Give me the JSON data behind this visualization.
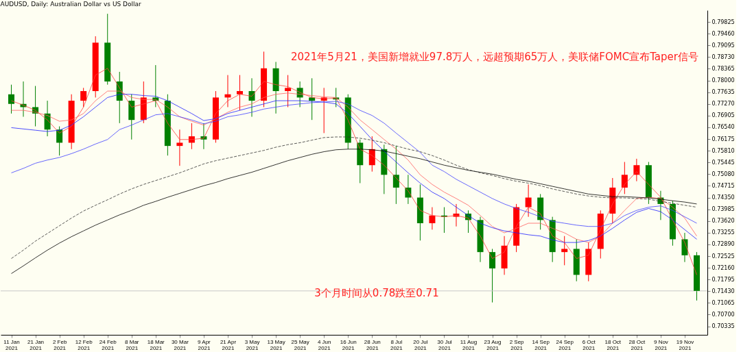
{
  "chart_data": {
    "type": "candlestick",
    "title": "AUDUSD, Daily: Australian Dollar vs US Dollar",
    "categories": [
      "11 Jan 2021",
      null,
      "21 Jan 2021",
      null,
      "2 Feb 2021",
      null,
      "12 Feb 2021",
      null,
      "24 Feb 2021",
      null,
      "8 Mar 2021",
      null,
      "18 Mar 2021",
      null,
      "30 Mar 2021",
      null,
      "9 Apr 2021",
      null,
      "21 Apr 2021",
      null,
      "3 May 2021",
      null,
      "13 May 2021",
      null,
      "25 May 2021",
      null,
      "4 Jun 2021",
      null,
      "16 Jun 2021",
      null,
      "28 Jun 2021",
      null,
      "8 Jul 2021",
      null,
      "20 Jul 2021",
      null,
      "30 Jul 2021",
      null,
      "11 Aug 2021",
      null,
      "23 Aug 2021",
      null,
      "2 Sep 2021",
      null,
      "14 Sep 2021",
      null,
      "24 Sep 2021",
      null,
      "6 Oct 2021",
      null,
      "18 Oct 2021",
      null,
      "28 Oct 2021",
      null,
      "9 Nov 2021",
      null,
      "19 Nov 2021",
      null
    ],
    "ohlc": [
      [
        0.7757,
        0.7787,
        0.7697,
        0.7727
      ],
      [
        0.7727,
        0.7797,
        0.7687,
        0.7717
      ],
      [
        0.7717,
        0.7783,
        0.7657,
        0.7697
      ],
      [
        0.7697,
        0.7737,
        0.7626,
        0.7647
      ],
      [
        0.7647,
        0.7657,
        0.7566,
        0.7606
      ],
      [
        0.7606,
        0.7757,
        0.7586,
        0.7737
      ],
      [
        0.7737,
        0.7777,
        0.7717,
        0.7767
      ],
      [
        0.7767,
        0.7938,
        0.7747,
        0.7918
      ],
      [
        0.7918,
        0.8008,
        0.7787,
        0.7797
      ],
      [
        0.7797,
        0.7827,
        0.7667,
        0.7737
      ],
      [
        0.7737,
        0.7757,
        0.7616,
        0.7677
      ],
      [
        0.7677,
        0.7797,
        0.7667,
        0.7747
      ],
      [
        0.7747,
        0.7848,
        0.7717,
        0.7737
      ],
      [
        0.7737,
        0.7757,
        0.7566,
        0.7596
      ],
      [
        0.7596,
        0.7647,
        0.7534,
        0.7606
      ],
      [
        0.7606,
        0.7667,
        0.7586,
        0.7626
      ],
      [
        0.7626,
        0.7667,
        0.7586,
        0.7616
      ],
      [
        0.7616,
        0.7767,
        0.7606,
        0.7747
      ],
      [
        0.7747,
        0.7817,
        0.7717,
        0.7757
      ],
      [
        0.7757,
        0.7817,
        0.7707,
        0.7767
      ],
      [
        0.7767,
        0.7807,
        0.7687,
        0.7737
      ],
      [
        0.7737,
        0.789,
        0.7717,
        0.7838
      ],
      [
        0.7838,
        0.7858,
        0.7697,
        0.7767
      ],
      [
        0.7767,
        0.7817,
        0.7717,
        0.7777
      ],
      [
        0.7777,
        0.7797,
        0.7717,
        0.7747
      ],
      [
        0.7747,
        0.7807,
        0.7677,
        0.7737
      ],
      [
        0.7737,
        0.7777,
        0.7636,
        0.7747
      ],
      [
        0.7747,
        0.7777,
        0.7717,
        0.7741
      ],
      [
        0.7747,
        0.7757,
        0.7586,
        0.7606
      ],
      [
        0.7606,
        0.7616,
        0.748,
        0.7536
      ],
      [
        0.7536,
        0.7626,
        0.7516,
        0.7586
      ],
      [
        0.7586,
        0.76,
        0.7446,
        0.7506
      ],
      [
        0.7506,
        0.7596,
        0.7415,
        0.7466
      ],
      [
        0.7466,
        0.7506,
        0.7415,
        0.7435
      ],
      [
        0.7435,
        0.7476,
        0.7301,
        0.7355
      ],
      [
        0.7355,
        0.7405,
        0.7335,
        0.7379
      ],
      [
        0.7379,
        0.7405,
        0.7325,
        0.7375
      ],
      [
        0.7375,
        0.7415,
        0.7345,
        0.7385
      ],
      [
        0.7385,
        0.7395,
        0.7325,
        0.7365
      ],
      [
        0.7365,
        0.7375,
        0.7234,
        0.7265
      ],
      [
        0.7265,
        0.7275,
        0.7108,
        0.7214
      ],
      [
        0.7214,
        0.7315,
        0.7194,
        0.7285
      ],
      [
        0.7285,
        0.7415,
        0.7265,
        0.7405
      ],
      [
        0.7405,
        0.7476,
        0.7375,
        0.7435
      ],
      [
        0.7435,
        0.7446,
        0.7335,
        0.7365
      ],
      [
        0.7365,
        0.7375,
        0.7234,
        0.7265
      ],
      [
        0.7265,
        0.7315,
        0.7224,
        0.7275
      ],
      [
        0.7275,
        0.7305,
        0.7174,
        0.7194
      ],
      [
        0.7194,
        0.7295,
        0.7174,
        0.7275
      ],
      [
        0.7275,
        0.7395,
        0.7245,
        0.7385
      ],
      [
        0.7385,
        0.7496,
        0.7355,
        0.7466
      ],
      [
        0.7466,
        0.7546,
        0.7446,
        0.7506
      ],
      [
        0.7506,
        0.7556,
        0.7486,
        0.7536
      ],
      [
        0.7536,
        0.7546,
        0.7415,
        0.7435
      ],
      [
        0.7435,
        0.7456,
        0.7365,
        0.7415
      ],
      [
        0.7415,
        0.7425,
        0.7285,
        0.7305
      ],
      [
        0.7305,
        0.7325,
        0.7234,
        0.7255
      ],
      [
        0.7255,
        0.7265,
        0.7114,
        0.7144
      ]
    ],
    "colors": [
      "#008000",
      "#008000",
      "#008000",
      "#008000",
      "#008000",
      "#ff0000",
      "#ff0000",
      "#ff0000",
      "#008000",
      "#008000",
      "#008000",
      "#ff0000",
      "#008000",
      "#008000",
      "#ff0000",
      "#ff0000",
      "#008000",
      "#ff0000",
      "#ff0000",
      "#ff0000",
      "#008000",
      "#ff0000",
      "#008000",
      "#ff0000",
      "#008000",
      "#008000",
      "#ff0000",
      "#008000",
      "#008000",
      "#008000",
      "#ff0000",
      "#008000",
      "#008000",
      "#008000",
      "#008000",
      "#ff0000",
      "#008000",
      "#ff0000",
      "#008000",
      "#008000",
      "#008000",
      "#ff0000",
      "#ff0000",
      "#ff0000",
      "#008000",
      "#008000",
      "#ff0000",
      "#008000",
      "#ff0000",
      "#ff0000",
      "#ff0000",
      "#ff0000",
      "#ff0000",
      "#008000",
      "#008000",
      "#008000",
      "#008000",
      "#008000"
    ],
    "series": [
      {
        "type": "line",
        "color": "#ff4040",
        "values": [
          0.7737,
          0.7723,
          0.7707,
          0.7677,
          0.7636,
          0.7657,
          0.7717,
          0.7817,
          0.7838,
          0.7777,
          0.7717,
          0.7727,
          0.7737,
          0.7667,
          0.7616,
          0.7616,
          0.762,
          0.7697,
          0.7737,
          0.7757,
          0.7751,
          0.7797,
          0.7787,
          0.7781,
          0.7763,
          0.7747,
          0.7743,
          0.7745,
          0.7677,
          0.7586,
          0.7566,
          0.7536,
          0.7496,
          0.7456,
          0.7395,
          0.7379,
          0.7375,
          0.7379,
          0.7371,
          0.7315,
          0.7245,
          0.7265,
          0.7345,
          0.7405,
          0.7385,
          0.7315,
          0.7295,
          0.7245,
          0.7255,
          0.7335,
          0.7415,
          0.7476,
          0.7516,
          0.7476,
          0.7436,
          0.7365,
          0.7295,
          0.7194
        ]
      },
      {
        "type": "line",
        "color": "#ff6060",
        "values": [
          0.7707,
          0.7707,
          0.7701,
          0.7691,
          0.7673,
          0.7677,
          0.7697,
          0.7737,
          0.7767,
          0.7767,
          0.7747,
          0.7741,
          0.7741,
          0.7717,
          0.7687,
          0.7673,
          0.7661,
          0.7681,
          0.7701,
          0.7717,
          0.7727,
          0.7747,
          0.7757,
          0.7761,
          0.7757,
          0.7753,
          0.7749,
          0.7747,
          0.7717,
          0.7677,
          0.7647,
          0.7616,
          0.7586,
          0.7552,
          0.7506,
          0.7476,
          0.7452,
          0.7432,
          0.7411,
          0.7379,
          0.7345,
          0.7325,
          0.7339,
          0.7355,
          0.7355,
          0.7339,
          0.7325,
          0.7305,
          0.7295,
          0.7315,
          0.7355,
          0.7395,
          0.7432,
          0.7436,
          0.7432,
          0.7405,
          0.7371,
          0.7315
        ]
      },
      {
        "type": "line",
        "color": "#2020ff",
        "values": [
          0.7653,
          0.7649,
          0.7645,
          0.7641,
          0.7645,
          0.7661,
          0.7687,
          0.7717,
          0.7747,
          0.7757,
          0.7757,
          0.7753,
          0.7751,
          0.7737,
          0.7717,
          0.7697,
          0.7675,
          0.7681,
          0.7697,
          0.7707,
          0.7717,
          0.7727,
          0.7737,
          0.7737,
          0.7737,
          0.7735,
          0.7733,
          0.7727,
          0.7697,
          0.7657,
          0.7616,
          0.758,
          0.7546,
          0.7512,
          0.748,
          0.7452,
          0.7432,
          0.7405,
          0.7379,
          0.7355,
          0.7341,
          0.7331,
          0.7325,
          0.7319,
          0.7315,
          0.7303,
          0.7295,
          0.7295,
          0.7301,
          0.7315,
          0.7339,
          0.7365,
          0.7389,
          0.7401,
          0.7391,
          0.7365,
          0.7335,
          0.7305
        ]
      },
      {
        "type": "line",
        "color": "#4040ff",
        "values": [
          0.7512,
          0.7526,
          0.7542,
          0.7552,
          0.756,
          0.7572,
          0.7586,
          0.7602,
          0.7616,
          0.7647,
          0.7661,
          0.7677,
          0.7693,
          0.7697,
          0.7687,
          0.7677,
          0.7665,
          0.7673,
          0.7687,
          0.7693,
          0.7701,
          0.7711,
          0.7717,
          0.7723,
          0.7727,
          0.7731,
          0.7733,
          0.7735,
          0.7727,
          0.7707,
          0.7691,
          0.7667,
          0.7636,
          0.7606,
          0.7576,
          0.7536,
          0.7516,
          0.7492,
          0.7472,
          0.7452,
          0.7432,
          0.7415,
          0.7401,
          0.7389,
          0.7375,
          0.7361,
          0.7355,
          0.7349,
          0.7345,
          0.7345,
          0.7355,
          0.7379,
          0.7395,
          0.7405,
          0.7409,
          0.7395,
          0.7375,
          0.7355
        ]
      },
      {
        "type": "line",
        "color": "#000000",
        "values": [
          0.7198,
          0.7222,
          0.7247,
          0.7271,
          0.7293,
          0.7313,
          0.7331,
          0.7349,
          0.7365,
          0.7381,
          0.7395,
          0.7411,
          0.7423,
          0.7436,
          0.7448,
          0.746,
          0.7472,
          0.7482,
          0.7494,
          0.7504,
          0.7514,
          0.7526,
          0.7538,
          0.755,
          0.756,
          0.757,
          0.7578,
          0.7584,
          0.7586,
          0.7586,
          0.7584,
          0.758,
          0.7572,
          0.7564,
          0.7556,
          0.7546,
          0.7536,
          0.7528,
          0.752,
          0.7514,
          0.7508,
          0.75,
          0.7492,
          0.7486,
          0.7478,
          0.747,
          0.7462,
          0.7454,
          0.7446,
          0.7442,
          0.7438,
          0.7438,
          0.7436,
          0.7434,
          0.743,
          0.7425,
          0.7421,
          0.7415
        ]
      },
      {
        "type": "line",
        "color": "#303030",
        "line_style": "dashed",
        "values": [
          0.7245,
          0.7271,
          0.7299,
          0.7323,
          0.7347,
          0.7371,
          0.7393,
          0.7411,
          0.7428,
          0.7446,
          0.7462,
          0.7476,
          0.7488,
          0.75,
          0.7512,
          0.7526,
          0.754,
          0.755,
          0.7558,
          0.7566,
          0.7574,
          0.7582,
          0.7592,
          0.76,
          0.7606,
          0.7614,
          0.7622,
          0.7624,
          0.7624,
          0.762,
          0.7614,
          0.7606,
          0.7596,
          0.7586,
          0.7578,
          0.7566,
          0.7552,
          0.7536,
          0.7522,
          0.7512,
          0.7504,
          0.7494,
          0.7486,
          0.748,
          0.7472,
          0.7462,
          0.7454,
          0.7446,
          0.744,
          0.7436,
          0.7434,
          0.7434,
          0.7432,
          0.743,
          0.7423,
          0.7417,
          0.7411,
          0.7405
        ]
      }
    ],
    "ylim": [
      0.7007,
      0.8019
    ],
    "yticks": [
      0.70335,
      {
        "value": 0.707,
        "label": "0.70700"
      },
      0.71065,
      {
        "value": 0.7143,
        "label": "0.71430"
      },
      0.71795,
      {
        "value": 0.7216,
        "label": "0.72160"
      },
      0.72525,
      {
        "value": 0.7289,
        "label": "0.72890"
      },
      0.73255,
      {
        "value": 0.7362,
        "label": "0.73620"
      },
      0.73985,
      {
        "value": 0.7435,
        "label": "0.74350"
      },
      0.74715,
      {
        "value": 0.7508,
        "label": "0.75080"
      },
      0.75445,
      {
        "value": 0.7581,
        "label": "0.75810"
      },
      0.76175,
      {
        "value": 0.7654,
        "label": "0.76540"
      },
      0.76905,
      {
        "value": 0.7727,
        "label": "0.77270"
      },
      0.77635,
      {
        "value": 0.78,
        "label": "0.78000"
      },
      0.78365,
      {
        "value": 0.7873,
        "label": "0.78730"
      },
      0.79095,
      {
        "value": 0.7946,
        "label": "0.79460"
      },
      0.79825
    ],
    "ref_lines": [
      {
        "axis": "y",
        "value": 0.7144,
        "color": "#c8c8c8"
      }
    ],
    "annotations": [
      "2021年5月21，美国新增就业97.8万人，远超预期65万人，美联储FOMC宣布Taper信号",
      "3个月时间从0.78跌至0.71"
    ],
    "grid": false
  }
}
